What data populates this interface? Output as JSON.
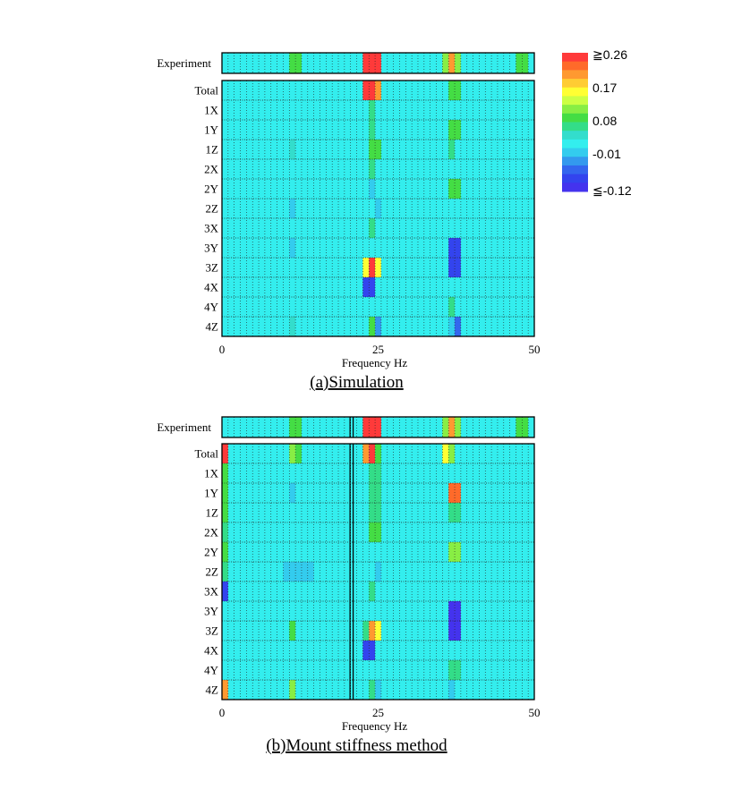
{
  "colorbar": {
    "labels": [
      "≧0.26",
      "0.17",
      "0.08",
      "-0.01",
      "≦-0.12"
    ],
    "colors": [
      "#ff3a3a",
      "#ff6a2a",
      "#ff9930",
      "#ffcc33",
      "#ffff33",
      "#ccff44",
      "#88ee44",
      "#44dd44",
      "#33dd88",
      "#33ddcc",
      "#33eeee",
      "#33ccee",
      "#3399ee",
      "#3366ee",
      "#3344ee",
      "#4433ee"
    ]
  },
  "chart_data": [
    {
      "type": "heatmap",
      "title": "(a)Simulation",
      "xlabel": "Frequency Hz",
      "xticks": [
        "0",
        "25",
        "50"
      ],
      "xlim": [
        0,
        50
      ],
      "value_range": [
        -0.12,
        0.26
      ],
      "rows": [
        "Experiment",
        "Total",
        "1X",
        "1Y",
        "1Z",
        "2X",
        "2Y",
        "2Z",
        "3X",
        "3Y",
        "3Z",
        "4X",
        "4Y",
        "4Z"
      ],
      "background_value": 0.0,
      "cells": [
        {
          "row": "Experiment",
          "x": [
            11,
            12
          ],
          "value": 0.08
        },
        {
          "row": "Experiment",
          "x": [
            23,
            25
          ],
          "value": 0.26
        },
        {
          "row": "Experiment",
          "x": [
            36,
            36
          ],
          "value": 0.12
        },
        {
          "row": "Experiment",
          "x": [
            37,
            37
          ],
          "value": 0.2
        },
        {
          "row": "Experiment",
          "x": [
            38,
            38
          ],
          "value": 0.12
        },
        {
          "row": "Experiment",
          "x": [
            48,
            49
          ],
          "value": 0.08
        },
        {
          "row": "Total",
          "x": [
            23,
            24
          ],
          "value": 0.26
        },
        {
          "row": "Total",
          "x": [
            25,
            25
          ],
          "value": 0.2
        },
        {
          "row": "Total",
          "x": [
            37,
            38
          ],
          "value": 0.08
        },
        {
          "row": "1X",
          "x": [
            24,
            24
          ],
          "value": 0.05
        },
        {
          "row": "1Y",
          "x": [
            24,
            24
          ],
          "value": 0.05
        },
        {
          "row": "1Y",
          "x": [
            37,
            38
          ],
          "value": 0.08
        },
        {
          "row": "1Z",
          "x": [
            11,
            11
          ],
          "value": 0.04
        },
        {
          "row": "1Z",
          "x": [
            24,
            25
          ],
          "value": 0.08
        },
        {
          "row": "1Z",
          "x": [
            37,
            37
          ],
          "value": 0.05
        },
        {
          "row": "2X",
          "x": [
            24,
            24
          ],
          "value": 0.05
        },
        {
          "row": "2Y",
          "x": [
            24,
            24
          ],
          "value": -0.02
        },
        {
          "row": "2Y",
          "x": [
            37,
            38
          ],
          "value": 0.08
        },
        {
          "row": "2Z",
          "x": [
            11,
            11
          ],
          "value": -0.02
        },
        {
          "row": "2Z",
          "x": [
            25,
            25
          ],
          "value": -0.03
        },
        {
          "row": "3X",
          "x": [
            24,
            24
          ],
          "value": 0.05
        },
        {
          "row": "3Y",
          "x": [
            11,
            11
          ],
          "value": -0.01
        },
        {
          "row": "3Y",
          "x": [
            37,
            38
          ],
          "value": -0.1
        },
        {
          "row": "3Z",
          "x": [
            23,
            23
          ],
          "value": 0.17
        },
        {
          "row": "3Z",
          "x": [
            24,
            24
          ],
          "value": 0.26
        },
        {
          "row": "3Z",
          "x": [
            25,
            25
          ],
          "value": 0.17
        },
        {
          "row": "3Z",
          "x": [
            37,
            38
          ],
          "value": -0.1
        },
        {
          "row": "4X",
          "x": [
            23,
            24
          ],
          "value": -0.1
        },
        {
          "row": "4Y",
          "x": [
            37,
            37
          ],
          "value": 0.05
        },
        {
          "row": "4Z",
          "x": [
            11,
            11
          ],
          "value": 0.04
        },
        {
          "row": "4Z",
          "x": [
            24,
            24
          ],
          "value": 0.08
        },
        {
          "row": "4Z",
          "x": [
            25,
            25
          ],
          "value": -0.04
        },
        {
          "row": "4Z",
          "x": [
            37,
            37
          ],
          "value": -0.02
        },
        {
          "row": "4Z",
          "x": [
            38,
            38
          ],
          "value": -0.06
        }
      ]
    },
    {
      "type": "heatmap",
      "title": "(b)Mount stiffness method",
      "xlabel": "Frequency Hz",
      "xticks": [
        "0",
        "25",
        "50"
      ],
      "xlim": [
        0,
        50
      ],
      "value_range": [
        -0.12,
        0.26
      ],
      "rows": [
        "Experiment",
        "Total",
        "1X",
        "1Y",
        "1Z",
        "2X",
        "2Y",
        "2Z",
        "3X",
        "3Y",
        "3Z",
        "4X",
        "4Y",
        "4Z"
      ],
      "background_value": 0.0,
      "cells": [
        {
          "row": "Experiment",
          "x": [
            11,
            12
          ],
          "value": 0.08
        },
        {
          "row": "Experiment",
          "x": [
            23,
            25
          ],
          "value": 0.26
        },
        {
          "row": "Experiment",
          "x": [
            36,
            36
          ],
          "value": 0.12
        },
        {
          "row": "Experiment",
          "x": [
            37,
            37
          ],
          "value": 0.2
        },
        {
          "row": "Experiment",
          "x": [
            38,
            38
          ],
          "value": 0.12
        },
        {
          "row": "Experiment",
          "x": [
            48,
            49
          ],
          "value": 0.08
        },
        {
          "row": "Total",
          "x": [
            0,
            0
          ],
          "value": 0.26
        },
        {
          "row": "Total",
          "x": [
            11,
            11
          ],
          "value": 0.12
        },
        {
          "row": "Total",
          "x": [
            12,
            12
          ],
          "value": 0.08
        },
        {
          "row": "Total",
          "x": [
            23,
            23
          ],
          "value": 0.2
        },
        {
          "row": "Total",
          "x": [
            24,
            24
          ],
          "value": 0.26
        },
        {
          "row": "Total",
          "x": [
            25,
            25
          ],
          "value": 0.08
        },
        {
          "row": "Total",
          "x": [
            36,
            36
          ],
          "value": 0.17
        },
        {
          "row": "Total",
          "x": [
            37,
            37
          ],
          "value": 0.12
        },
        {
          "row": "1X",
          "x": [
            0,
            0
          ],
          "value": 0.08
        },
        {
          "row": "1X",
          "x": [
            24,
            25
          ],
          "value": 0.05
        },
        {
          "row": "1Y",
          "x": [
            0,
            0
          ],
          "value": 0.08
        },
        {
          "row": "1Y",
          "x": [
            11,
            11
          ],
          "value": -0.02
        },
        {
          "row": "1Y",
          "x": [
            24,
            25
          ],
          "value": 0.05
        },
        {
          "row": "1Y",
          "x": [
            37,
            38
          ],
          "value": 0.23
        },
        {
          "row": "1Z",
          "x": [
            0,
            0
          ],
          "value": 0.08
        },
        {
          "row": "1Z",
          "x": [
            24,
            25
          ],
          "value": 0.05
        },
        {
          "row": "1Z",
          "x": [
            37,
            38
          ],
          "value": 0.05
        },
        {
          "row": "2X",
          "x": [
            0,
            0
          ],
          "value": 0.05
        },
        {
          "row": "2X",
          "x": [
            24,
            25
          ],
          "value": 0.08
        },
        {
          "row": "2Y",
          "x": [
            0,
            0
          ],
          "value": 0.08
        },
        {
          "row": "2Y",
          "x": [
            37,
            38
          ],
          "value": 0.12
        },
        {
          "row": "2Z",
          "x": [
            0,
            0
          ],
          "value": 0.05
        },
        {
          "row": "2Z",
          "x": [
            10,
            14
          ],
          "value": -0.02
        },
        {
          "row": "2Z",
          "x": [
            25,
            25
          ],
          "value": -0.02
        },
        {
          "row": "3X",
          "x": [
            0,
            0
          ],
          "value": -0.1
        },
        {
          "row": "3X",
          "x": [
            24,
            24
          ],
          "value": 0.05
        },
        {
          "row": "3Y",
          "x": [
            37,
            38
          ],
          "value": -0.12
        },
        {
          "row": "3Z",
          "x": [
            11,
            11
          ],
          "value": 0.08
        },
        {
          "row": "3Z",
          "x": [
            23,
            23
          ],
          "value": 0.05
        },
        {
          "row": "3Z",
          "x": [
            24,
            24
          ],
          "value": 0.2
        },
        {
          "row": "3Z",
          "x": [
            25,
            25
          ],
          "value": 0.17
        },
        {
          "row": "3Z",
          "x": [
            37,
            38
          ],
          "value": -0.12
        },
        {
          "row": "4X",
          "x": [
            23,
            24
          ],
          "value": -0.1
        },
        {
          "row": "4Y",
          "x": [
            37,
            38
          ],
          "value": 0.05
        },
        {
          "row": "4Z",
          "x": [
            0,
            0
          ],
          "value": 0.2
        },
        {
          "row": "4Z",
          "x": [
            11,
            11
          ],
          "value": 0.12
        },
        {
          "row": "4Z",
          "x": [
            24,
            24
          ],
          "value": 0.05
        },
        {
          "row": "4Z",
          "x": [
            25,
            25
          ],
          "value": -0.02
        },
        {
          "row": "4Z",
          "x": [
            37,
            37
          ],
          "value": -0.03
        }
      ],
      "vertical_lines_x": [
        20.5,
        21
      ]
    }
  ]
}
